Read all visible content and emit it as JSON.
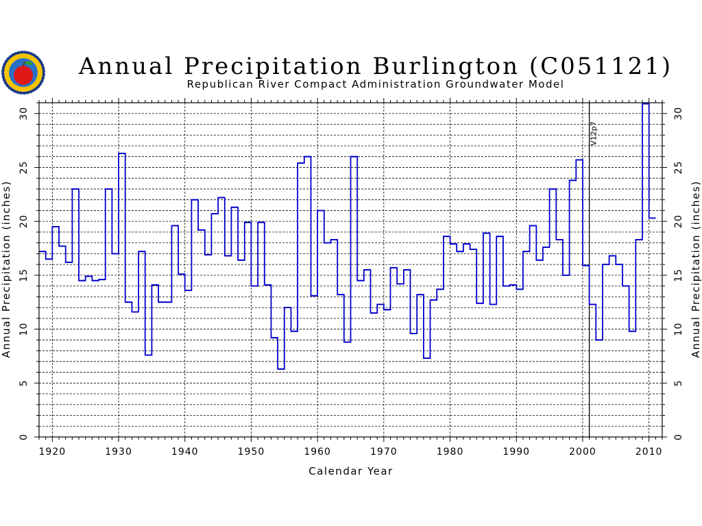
{
  "chart_data": {
    "type": "line",
    "step": true,
    "title": "Annual Precipitation Burlington (C051121)",
    "subtitle": "Republican River Compact Administration Groundwater Model",
    "xlabel": "Calendar Year",
    "ylabel": "Annual Precipitation (inches)",
    "ylabel_right": "Annual Precipitation (inches)",
    "xlim": [
      1918,
      2012
    ],
    "ylim": [
      0,
      31
    ],
    "x_ticks": [
      1920,
      1930,
      1940,
      1950,
      1960,
      1970,
      1980,
      1990,
      2000,
      2010
    ],
    "y_ticks": [
      0,
      5,
      10,
      15,
      20,
      25,
      30
    ],
    "grid": true,
    "series_color": "#0000cc",
    "logo": "apple-seal-logo",
    "annotation": {
      "label": "V12p7",
      "x": 2001
    },
    "series": [
      {
        "x": [
          1918,
          1919,
          1920,
          1921,
          1922,
          1923,
          1924,
          1925,
          1926,
          1927,
          1928,
          1929,
          1930,
          1931,
          1932,
          1933,
          1934,
          1935,
          1936,
          1937,
          1938,
          1939,
          1940,
          1941,
          1942,
          1943,
          1944,
          1945,
          1946,
          1947,
          1948,
          1949,
          1950,
          1951,
          1952,
          1953,
          1954,
          1955,
          1956,
          1957,
          1958,
          1959,
          1960,
          1961,
          1962,
          1963,
          1964,
          1965,
          1966,
          1967,
          1968,
          1969,
          1970,
          1971,
          1972,
          1973,
          1974,
          1975,
          1976,
          1977,
          1978,
          1979,
          1980,
          1981,
          1982,
          1983,
          1984,
          1985,
          1986,
          1987,
          1988,
          1989,
          1990,
          1991,
          1992,
          1993,
          1994,
          1995,
          1996,
          1997,
          1998,
          1999,
          2000,
          2001,
          2002,
          2003,
          2004,
          2005,
          2006,
          2007,
          2008,
          2009,
          2010
        ],
        "values": [
          17.2,
          16.5,
          19.5,
          17.7,
          16.2,
          23.0,
          14.5,
          14.9,
          14.5,
          14.6,
          23.0,
          17.0,
          26.3,
          12.5,
          11.6,
          17.2,
          7.6,
          14.1,
          12.5,
          12.5,
          19.6,
          15.1,
          13.6,
          22.0,
          19.2,
          16.9,
          20.7,
          22.2,
          16.8,
          21.3,
          16.4,
          19.9,
          14.0,
          19.9,
          14.1,
          9.2,
          6.3,
          12.0,
          9.8,
          25.4,
          26.0,
          13.1,
          21.0,
          18.0,
          18.3,
          13.2,
          8.8,
          26.0,
          14.5,
          15.5,
          11.5,
          12.3,
          11.8,
          15.7,
          14.2,
          15.5,
          9.6,
          13.2,
          7.3,
          12.7,
          13.7,
          18.6,
          17.9,
          17.2,
          17.9,
          17.4,
          12.4,
          18.9,
          12.3,
          18.6,
          14.0,
          14.1,
          13.7,
          17.2,
          19.6,
          16.4,
          17.6,
          23.0,
          18.3,
          15.0,
          23.8,
          25.7,
          15.9,
          12.3,
          9.0,
          16.0,
          16.8,
          16.0,
          14.0,
          9.8,
          18.3,
          30.9,
          20.3
        ]
      }
    ]
  }
}
